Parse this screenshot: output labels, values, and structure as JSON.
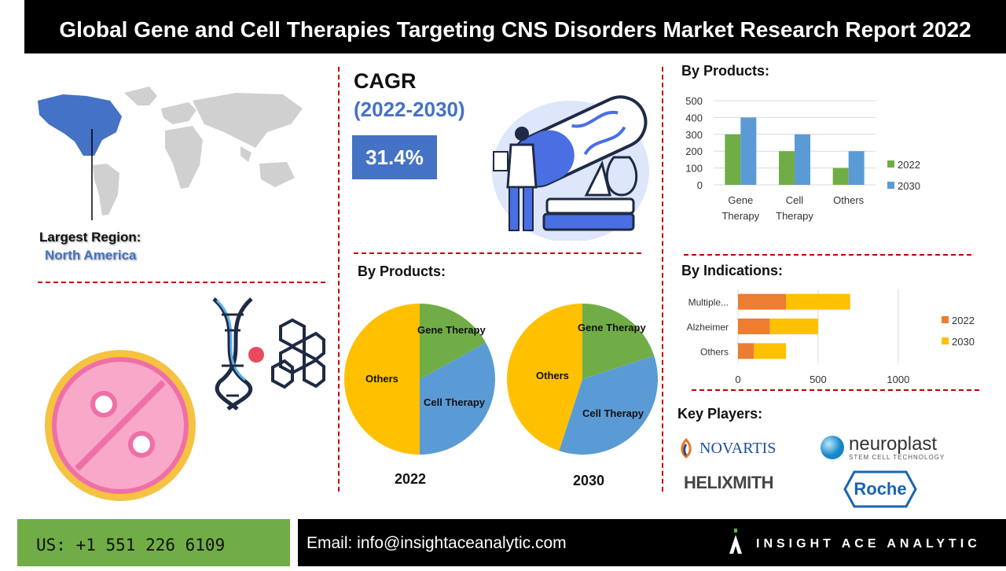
{
  "title": "Global Gene and Cell Therapies Targeting CNS Disorders Market Research Report 2022",
  "region": {
    "label": "Largest Region:",
    "value": "North America"
  },
  "cagr": {
    "label": "CAGR",
    "years": "(2022-2030)",
    "value": "31.4%"
  },
  "sections": {
    "by_products_bar": "By Products:",
    "by_products_pie": "By Products:",
    "by_indications": "By Indications:",
    "key_players": "Key Players:"
  },
  "key_players": [
    "NOVARTIS",
    "neuroplast",
    "STEM CELL TECHNOLOGY",
    "HELIXMITH",
    "Roche"
  ],
  "footer": {
    "phone": "US: +1 551 226 6109",
    "email": "Email: info@insightaceanalytic.com",
    "brand": "INSIGHT ACE ANALYTIC"
  },
  "colors": {
    "y2022_bar": "#70ad47",
    "y2030_bar": "#5b9bd5",
    "y2022_hbar": "#ed7d31",
    "y2030_hbar": "#ffc000",
    "pie_gene": "#70ad47",
    "pie_cell": "#5b9bd5",
    "pie_others": "#ffc000",
    "accent": "#4472c4"
  },
  "chart_data": [
    {
      "type": "bar",
      "title": "By Products:",
      "categories": [
        "Gene Therapy",
        "Cell Therapy",
        "Others"
      ],
      "series": [
        {
          "name": "2022",
          "values": [
            300,
            200,
            100
          ]
        },
        {
          "name": "2030",
          "values": [
            400,
            300,
            200
          ]
        }
      ],
      "ylim": [
        0,
        500
      ],
      "yticks": [
        0,
        100,
        200,
        300,
        400,
        500
      ],
      "legend": "right",
      "grid": true
    },
    {
      "type": "bar",
      "orientation": "horizontal-stacked",
      "title": "By Indications:",
      "categories": [
        "Multiple...",
        "Alzheimer",
        "Others"
      ],
      "series": [
        {
          "name": "2022",
          "values": [
            300,
            200,
            100
          ]
        },
        {
          "name": "2030",
          "values": [
            400,
            300,
            200
          ]
        }
      ],
      "xlim": [
        0,
        1300
      ],
      "xticks": [
        0,
        500,
        1000
      ],
      "legend": "right",
      "grid": true
    },
    {
      "type": "pie",
      "title": "2022",
      "labels": [
        "Gene Therapy",
        "Cell Therapy",
        "Others"
      ],
      "values": [
        17,
        33,
        50
      ]
    },
    {
      "type": "pie",
      "title": "2030",
      "labels": [
        "Gene Therapy",
        "Cell Therapy",
        "Others"
      ],
      "values": [
        20,
        35,
        45
      ]
    }
  ]
}
